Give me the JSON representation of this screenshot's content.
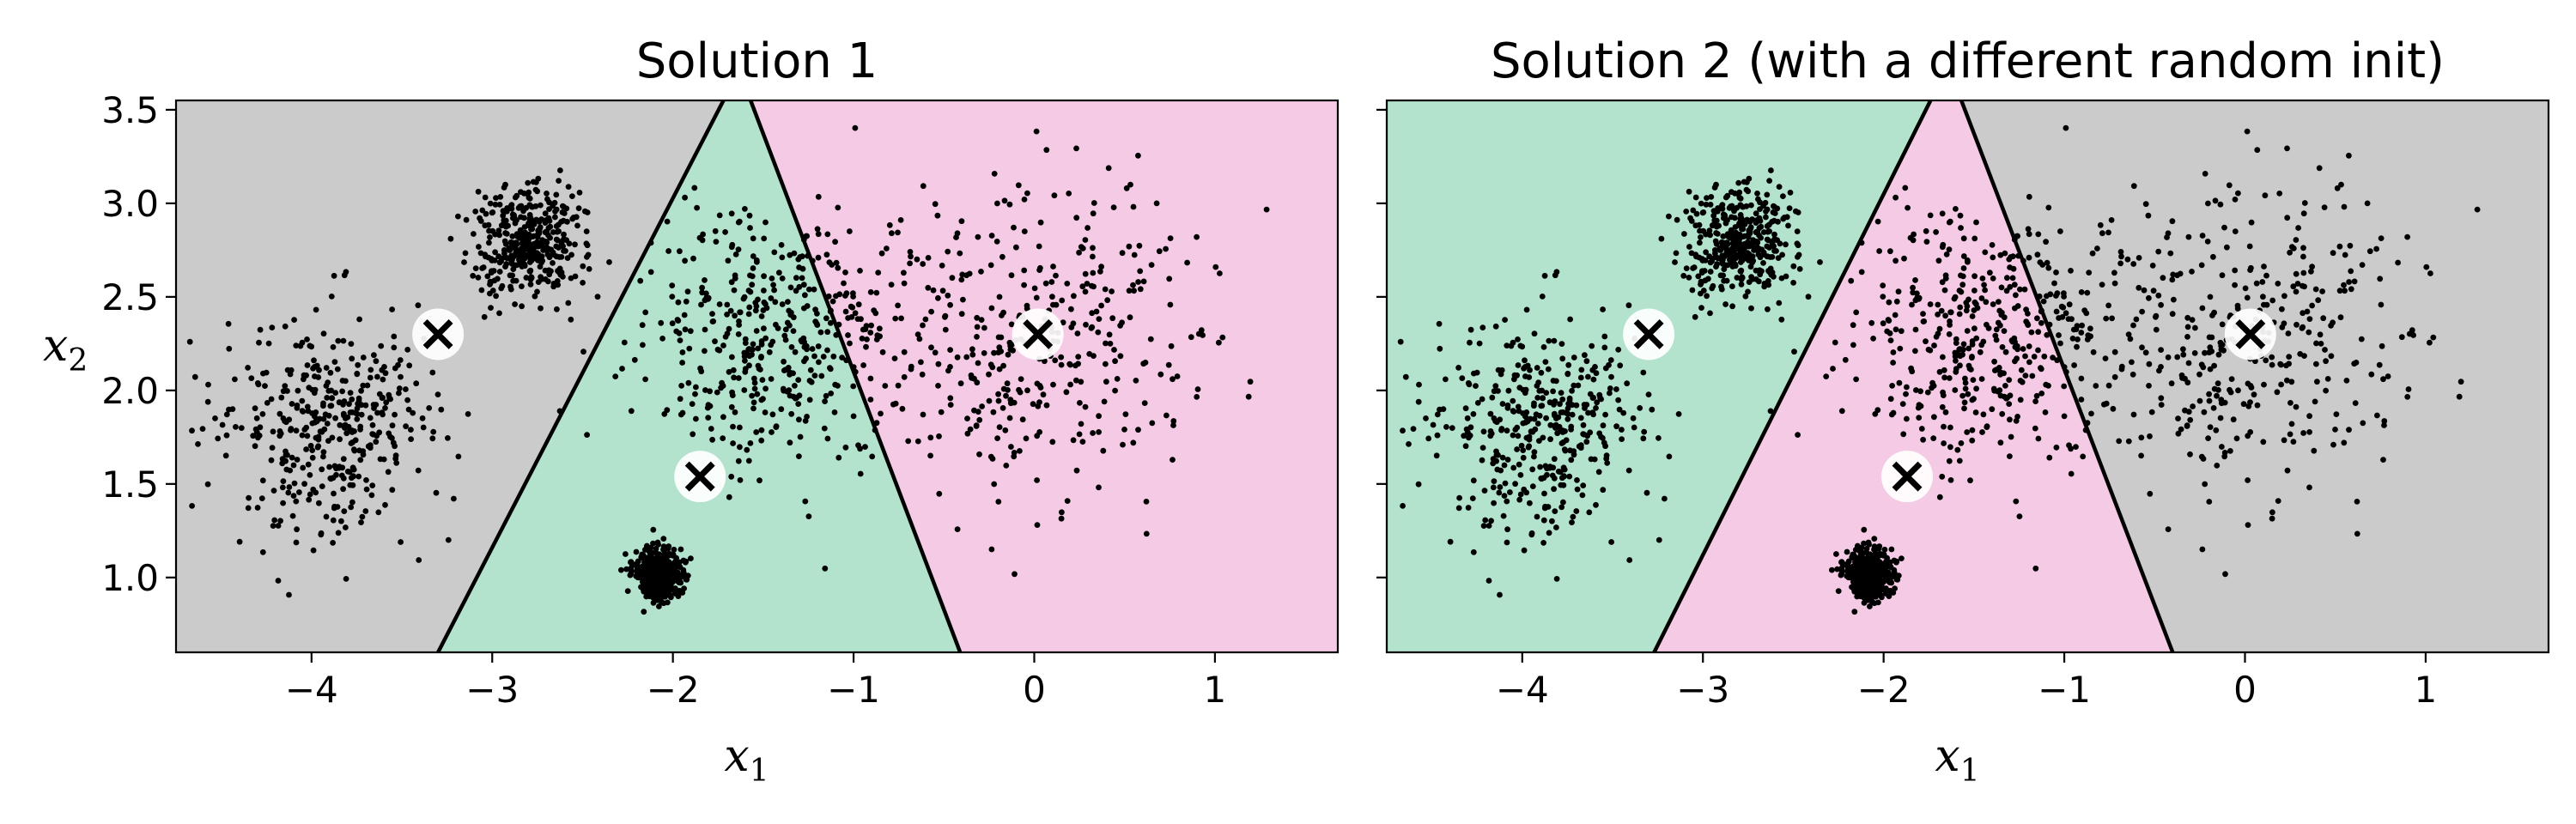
{
  "chart_data": [
    {
      "type": "scatter",
      "title": "Solution 1",
      "xlabel": "x",
      "xlabel_sub": "1",
      "ylabel": "x",
      "ylabel_sub": "2",
      "xlim": [
        -4.75,
        1.68
      ],
      "ylim": [
        0.6,
        3.55
      ],
      "xticks": [
        -4,
        -3,
        -2,
        -1,
        0,
        1
      ],
      "xtick_labels": [
        "−4",
        "−3",
        "−2",
        "−1",
        "0",
        "1"
      ],
      "yticks": [
        1.0,
        1.5,
        2.0,
        2.5,
        3.0,
        3.5
      ],
      "ytick_labels": [
        "1.0",
        "1.5",
        "2.0",
        "2.5",
        "3.0",
        "3.5"
      ],
      "show_yticklabels": true,
      "grid": false,
      "regions": [
        {
          "name": "gray",
          "color": "#cbcbcb",
          "polygon": [
            [
              -4.75,
              3.55
            ],
            [
              -1.72,
              3.55
            ],
            [
              -3.3,
              0.6
            ],
            [
              -4.75,
              0.6
            ]
          ]
        },
        {
          "name": "green",
          "color": "#b3e2cd",
          "polygon": [
            [
              -1.72,
              3.55
            ],
            [
              -1.57,
              3.55
            ],
            [
              -0.41,
              0.6
            ],
            [
              -3.3,
              0.6
            ]
          ]
        },
        {
          "name": "pink",
          "color": "#f4cae4",
          "polygon": [
            [
              -1.57,
              3.55
            ],
            [
              1.68,
              3.55
            ],
            [
              1.68,
              0.6
            ],
            [
              -0.41,
              0.6
            ]
          ]
        }
      ],
      "boundaries": [
        {
          "from": [
            -1.72,
            3.55
          ],
          "to": [
            -3.3,
            0.6
          ]
        },
        {
          "from": [
            -1.57,
            3.55
          ],
          "to": [
            -0.41,
            0.6
          ]
        }
      ],
      "clusters": [
        {
          "cx": -3.9,
          "cy": 1.8,
          "sx": 0.28,
          "sy": 0.28,
          "n": 400
        },
        {
          "cx": -2.8,
          "cy": 2.8,
          "sx": 0.15,
          "sy": 0.15,
          "n": 400
        },
        {
          "cx": -2.08,
          "cy": 1.02,
          "sx": 0.07,
          "sy": 0.07,
          "n": 400
        },
        {
          "cx": -1.45,
          "cy": 2.3,
          "sx": 0.35,
          "sy": 0.35,
          "n": 400
        },
        {
          "cx": -0.05,
          "cy": 2.3,
          "sx": 0.5,
          "sy": 0.42,
          "n": 400
        }
      ],
      "centroids": [
        [
          -3.3,
          2.3
        ],
        [
          -1.85,
          1.54
        ],
        [
          0.02,
          2.3
        ]
      ]
    },
    {
      "type": "scatter",
      "title": "Solution 2 (with a different random init)",
      "xlabel": "x",
      "xlabel_sub": "1",
      "xlim": [
        -4.75,
        1.68
      ],
      "ylim": [
        0.6,
        3.55
      ],
      "xticks": [
        -4,
        -3,
        -2,
        -1,
        0,
        1
      ],
      "xtick_labels": [
        "−4",
        "−3",
        "−2",
        "−1",
        "0",
        "1"
      ],
      "yticks": [
        1.0,
        1.5,
        2.0,
        2.5,
        3.0,
        3.5
      ],
      "show_yticklabels": false,
      "grid": false,
      "regions": [
        {
          "name": "green",
          "color": "#b3e2cd",
          "polygon": [
            [
              -4.75,
              3.55
            ],
            [
              -1.74,
              3.55
            ],
            [
              -3.27,
              0.6
            ],
            [
              -4.75,
              0.6
            ]
          ]
        },
        {
          "name": "pink",
          "color": "#f4cae4",
          "polygon": [
            [
              -1.74,
              3.55
            ],
            [
              -1.57,
              3.55
            ],
            [
              -0.4,
              0.6
            ],
            [
              -3.27,
              0.6
            ]
          ]
        },
        {
          "name": "gray",
          "color": "#cbcbcb",
          "polygon": [
            [
              -1.57,
              3.55
            ],
            [
              1.68,
              3.55
            ],
            [
              1.68,
              0.6
            ],
            [
              -0.4,
              0.6
            ]
          ]
        }
      ],
      "boundaries": [
        {
          "from": [
            -1.74,
            3.55
          ],
          "to": [
            -3.27,
            0.6
          ]
        },
        {
          "from": [
            -1.57,
            3.55
          ],
          "to": [
            -0.4,
            0.6
          ]
        }
      ],
      "clusters": [
        {
          "cx": -3.9,
          "cy": 1.8,
          "sx": 0.28,
          "sy": 0.28,
          "n": 400
        },
        {
          "cx": -2.8,
          "cy": 2.8,
          "sx": 0.15,
          "sy": 0.15,
          "n": 400
        },
        {
          "cx": -2.08,
          "cy": 1.02,
          "sx": 0.07,
          "sy": 0.07,
          "n": 400
        },
        {
          "cx": -1.45,
          "cy": 2.3,
          "sx": 0.35,
          "sy": 0.35,
          "n": 400
        },
        {
          "cx": -0.05,
          "cy": 2.3,
          "sx": 0.5,
          "sy": 0.42,
          "n": 400
        }
      ],
      "centroids": [
        [
          -3.3,
          2.3
        ],
        [
          -1.87,
          1.54
        ],
        [
          0.03,
          2.3
        ]
      ]
    }
  ]
}
